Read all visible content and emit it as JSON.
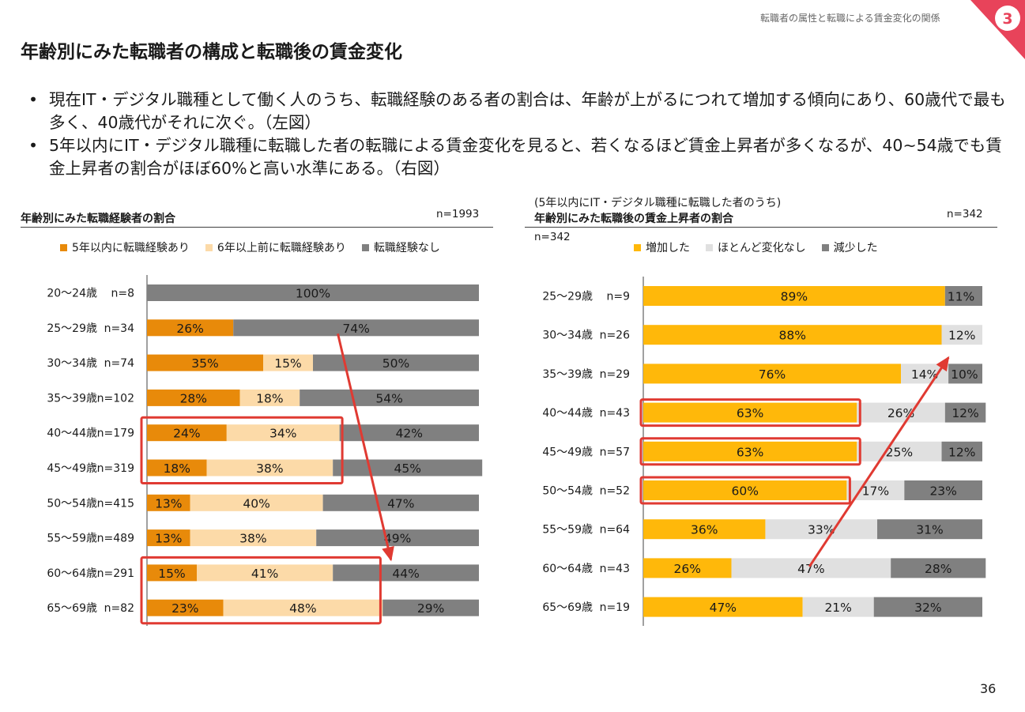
{
  "header": {
    "section_title": "転職者の属性と転職による賃金変化の関係",
    "section_number": "3"
  },
  "page_title": "年齢別にみた転職者の構成と転職後の賃金変化",
  "bullets": [
    "現在IT・デジタル職種として働く人のうち、転職経験のある者の割合は、年齢が上がるにつれて増加する傾向にあり、60歳代で最も多く、40歳代がそれに次ぐ。（左図）",
    "5年以内にIT・デジタル職種に転職した者の転職による賃金変化を見ると、若くなるほど賃金上昇者が多くなるが、40~54歳でも賃金上昇者の割合がほぼ60%と高い水準にある。（右図）"
  ],
  "page_number": "36",
  "colors": {
    "accent_red": "#e03a32",
    "badge": "#e8435a",
    "orange": "#e88a0a",
    "light_orange": "#fcdaa8",
    "gray": "#808080",
    "yellow": "#ffb80a",
    "light_gray": "#e0e0e0",
    "dark_gray": "#808080"
  },
  "chart_data": [
    {
      "type": "bar",
      "orientation": "horizontal",
      "stacked": true,
      "title": "年齢別にみた転職経験者の割合",
      "n_label": "n=1993",
      "categories": [
        "20～24歳",
        "25～29歳",
        "30～34歳",
        "35～39歳",
        "40～44歳",
        "45～49歳",
        "50～54歳",
        "55～59歳",
        "60～64歳",
        "65～69歳"
      ],
      "n_labels": [
        "n=8",
        "n=34",
        "n=74",
        "n=102",
        "n=179",
        "n=319",
        "n=415",
        "n=489",
        "n=291",
        "n=82"
      ],
      "series": [
        {
          "name": "5年以内に転職経験あり",
          "color": "#e88a0a",
          "values": [
            0,
            26,
            35,
            28,
            24,
            18,
            13,
            13,
            15,
            23
          ]
        },
        {
          "name": "6年以上前に転職経験あり",
          "color": "#fcdaa8",
          "values": [
            0,
            0,
            15,
            18,
            34,
            38,
            40,
            38,
            41,
            48
          ]
        },
        {
          "name": "転職経験なし",
          "color": "#808080",
          "values": [
            100,
            74,
            50,
            54,
            42,
            45,
            47,
            49,
            44,
            29
          ]
        }
      ],
      "xlim": [
        0,
        100
      ],
      "legend_position": "top",
      "highlights": [
        [
          "40～44歳",
          "45～49歳"
        ],
        [
          "60～64歳",
          "65～69歳"
        ]
      ]
    },
    {
      "type": "bar",
      "orientation": "horizontal",
      "stacked": true,
      "pretitle": "(5年以内にIT・デジタル職種に転職した者のうち)",
      "title": "年齢別にみた転職後の賃金上昇者の割合",
      "n_label": "n=342",
      "n_label_2": "n=342",
      "categories": [
        "25～29歳",
        "30～34歳",
        "35～39歳",
        "40～44歳",
        "45～49歳",
        "50～54歳",
        "55～59歳",
        "60～64歳",
        "65～69歳"
      ],
      "n_labels": [
        "n=9",
        "n=26",
        "n=29",
        "n=43",
        "n=57",
        "n=52",
        "n=64",
        "n=43",
        "n=19"
      ],
      "series": [
        {
          "name": "増加した",
          "color": "#ffb80a",
          "values": [
            89,
            88,
            76,
            63,
            63,
            60,
            36,
            26,
            47
          ]
        },
        {
          "name": "ほとんど変化なし",
          "color": "#e0e0e0",
          "values": [
            0,
            12,
            14,
            26,
            25,
            17,
            33,
            47,
            21
          ]
        },
        {
          "name": "減少した",
          "color": "#808080",
          "values": [
            11,
            0,
            10,
            12,
            12,
            23,
            31,
            28,
            32
          ]
        }
      ],
      "xlim": [
        0,
        100
      ],
      "legend_position": "top",
      "highlights": [
        [
          "40～44歳"
        ],
        [
          "45～49歳"
        ],
        [
          "50～54歳"
        ]
      ]
    }
  ]
}
